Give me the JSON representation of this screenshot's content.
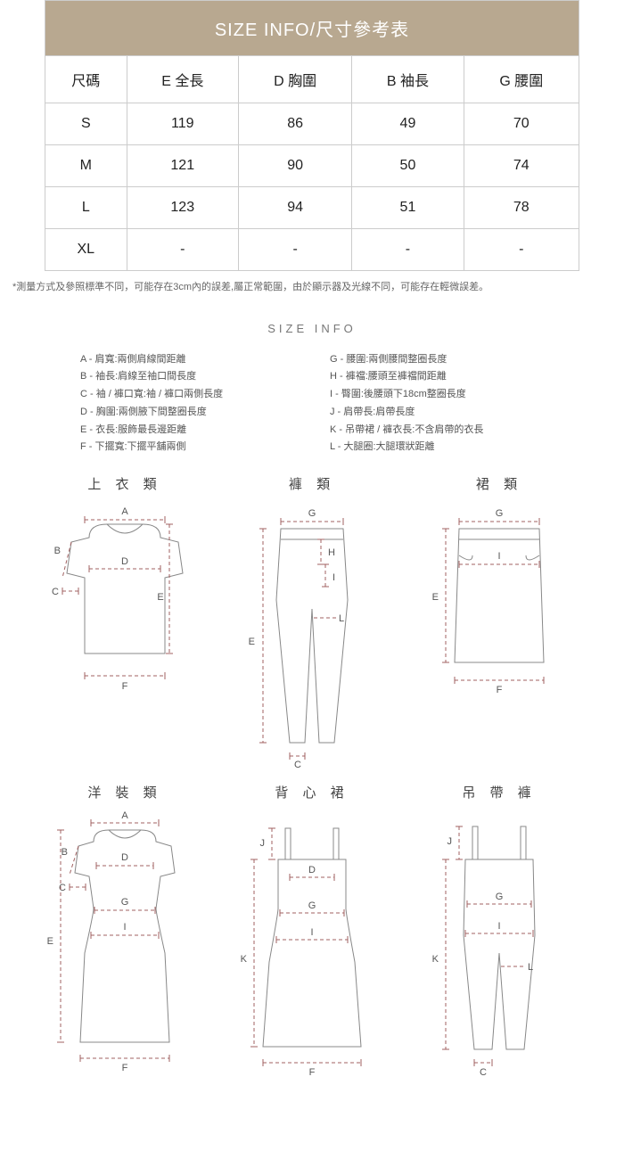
{
  "table": {
    "title": "SIZE  INFO/尺寸參考表",
    "columns": [
      "尺碼",
      "E 全長",
      "D 胸圍",
      "B 袖長",
      "G 腰圍"
    ],
    "rows": [
      [
        "S",
        "119",
        "86",
        "49",
        "70"
      ],
      [
        "M",
        "121",
        "90",
        "50",
        "74"
      ],
      [
        "L",
        "123",
        "94",
        "51",
        "78"
      ],
      [
        "XL",
        "-",
        "-",
        "-",
        "-"
      ]
    ],
    "title_bg": "#b8a890",
    "border_color": "#cccccc"
  },
  "footnote": "*測量方式及參照標準不同，可能存在3cm內的誤差,屬正常範圍，由於顯示器及光線不同，可能存在輕微誤差。",
  "size_info_title": "SIZE INFO",
  "legend": {
    "left": [
      "A - 肩寬:兩側肩線間距離",
      "B - 袖長:肩線至袖口間長度",
      "C - 袖 / 褲口寬:袖 / 褲口兩側長度",
      "D - 胸圍:兩側腋下間整圈長度",
      "E - 衣長:服飾最長邊距離",
      "F - 下擺寬:下擺平舖兩側"
    ],
    "right": [
      "G - 腰圍:兩側腰間整圈長度",
      "H - 褲襠:腰頭至褲襠間距離",
      "I - 臀圍:後腰頭下18cm整圈長度",
      "J - 肩帶長:肩帶長度",
      "K - 吊帶裙 / 褲衣長:不含肩帶的衣長",
      "L - 大腿圈:大腿環狀距離"
    ]
  },
  "diagrams": {
    "stroke": "#888888",
    "dash": "#a06060",
    "items": [
      {
        "title": "上 衣 類",
        "type": "top"
      },
      {
        "title": "褲 類",
        "type": "pants"
      },
      {
        "title": "裙 類",
        "type": "skirt"
      },
      {
        "title": "洋 裝 類",
        "type": "dress"
      },
      {
        "title": "背 心 裙",
        "type": "camidress"
      },
      {
        "title": "吊 帶 褲",
        "type": "overalls"
      }
    ]
  }
}
